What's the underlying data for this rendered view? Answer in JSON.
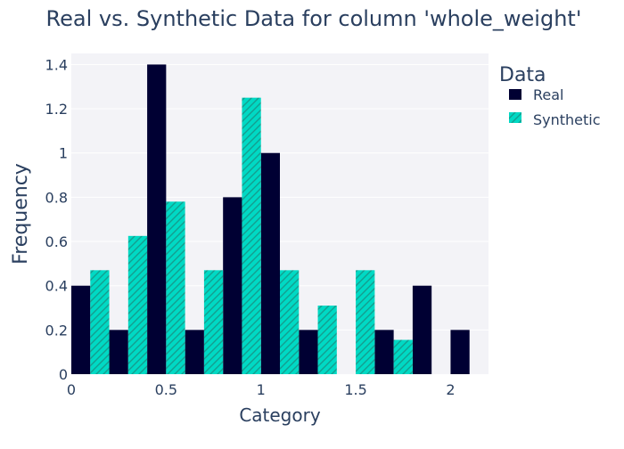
{
  "chart_data": {
    "type": "bar",
    "title": "Real vs. Synthetic Data for column 'whole_weight'",
    "xlabel": "Category",
    "ylabel": "Frequency",
    "xlim": [
      0,
      2.2
    ],
    "ylim": [
      0,
      1.45
    ],
    "x_ticks": [
      0,
      0.5,
      1,
      1.5,
      2
    ],
    "x_tick_labels": [
      "0",
      "0.5",
      "1",
      "1.5",
      "2"
    ],
    "y_ticks": [
      0,
      0.2,
      0.4,
      0.6,
      0.8,
      1,
      1.2,
      1.4
    ],
    "y_tick_labels": [
      "0",
      "0.2",
      "0.4",
      "0.6",
      "0.8",
      "1",
      "1.2",
      "1.4"
    ],
    "grid": true,
    "bin_width": 0.2,
    "bin_starts": [
      0,
      0.2,
      0.4,
      0.6,
      0.8,
      1.0,
      1.2,
      1.4,
      1.6,
      1.8,
      2.0
    ],
    "series": [
      {
        "name": "Real",
        "color": "#000033",
        "values": [
          0.4,
          0.2,
          1.4,
          0.2,
          0.8,
          1.0,
          0.2,
          0,
          0.2,
          0.4,
          0.2
        ]
      },
      {
        "name": "Synthetic",
        "color": "#00d9c4",
        "pattern": "diagonal-hatch",
        "values": [
          0.47,
          0.625,
          0.78,
          0.47,
          1.25,
          0.47,
          0.31,
          0.47,
          0.155,
          0,
          0
        ]
      }
    ],
    "legend": {
      "title": "Data",
      "position": "top-right"
    },
    "plot_background": "#f3f3f7",
    "text_color": "#2a3f5f"
  }
}
